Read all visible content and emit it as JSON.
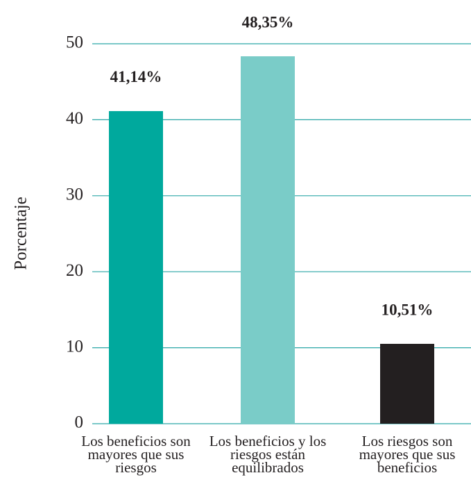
{
  "chart_data": {
    "type": "bar",
    "y_label": "Porcentaje",
    "categories": [
      "Los beneficios son mayores que sus riesgos",
      "Los beneficios y los riesgos están equilibrados",
      "Los riesgos son mayores que sus beneficios"
    ],
    "values": [
      41.14,
      48.35,
      10.51
    ],
    "value_labels": [
      "41,14%",
      "48,35%",
      "10,51%"
    ],
    "colors": [
      "#00a99d",
      "#7accc8",
      "#231f20"
    ],
    "ylim": [
      0,
      50
    ],
    "yticks": [
      0,
      10,
      20,
      30,
      40,
      50
    ],
    "grid": true,
    "grid_color": "#2aa6a6"
  }
}
